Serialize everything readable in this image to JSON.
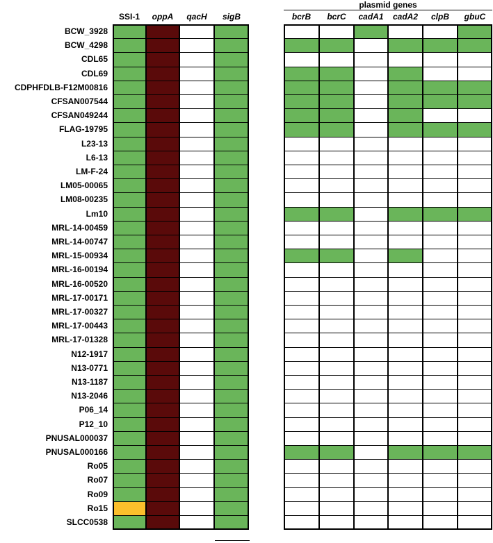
{
  "colors": {
    "present": "#6ab55a",
    "absent": "#ffffff",
    "oppA": "#5a0a0a",
    "variant": "#fbbf2c",
    "border": "#000000"
  },
  "chart_data": {
    "type": "heatmap",
    "title": "",
    "group_title": "plasmid genes",
    "columns": [
      {
        "label": "SSI-1",
        "italic": false,
        "group": "left"
      },
      {
        "label": "oppA",
        "italic": true,
        "group": "left"
      },
      {
        "label": "qacH",
        "italic": true,
        "group": "left"
      },
      {
        "label": "sigB",
        "italic": true,
        "group": "left"
      },
      {
        "label": "bcrB",
        "italic": true,
        "group": "plasmid"
      },
      {
        "label": "bcrC",
        "italic": true,
        "group": "plasmid"
      },
      {
        "label": "cadA1",
        "italic": true,
        "group": "plasmid"
      },
      {
        "label": "cadA2",
        "italic": true,
        "group": "plasmid"
      },
      {
        "label": "clpB",
        "italic": true,
        "group": "plasmid"
      },
      {
        "label": "gbuC",
        "italic": true,
        "group": "plasmid"
      }
    ],
    "value_legend": {
      "0": "absent",
      "1": "present",
      "2": "oppA",
      "3": "variant"
    },
    "rows": [
      {
        "label": "BCW_3928",
        "values": [
          1,
          2,
          0,
          1,
          0,
          0,
          1,
          0,
          0,
          1
        ]
      },
      {
        "label": "BCW_4298",
        "values": [
          1,
          2,
          0,
          1,
          1,
          1,
          0,
          1,
          1,
          1
        ]
      },
      {
        "label": "CDL65",
        "values": [
          1,
          2,
          0,
          1,
          0,
          0,
          0,
          0,
          0,
          0
        ]
      },
      {
        "label": "CDL69",
        "values": [
          1,
          2,
          0,
          1,
          1,
          1,
          0,
          1,
          0,
          0
        ]
      },
      {
        "label": "CDPHFDLB-F12M00816",
        "values": [
          1,
          2,
          0,
          1,
          1,
          1,
          0,
          1,
          1,
          1
        ]
      },
      {
        "label": "CFSAN007544",
        "values": [
          1,
          2,
          0,
          1,
          1,
          1,
          0,
          1,
          1,
          1
        ]
      },
      {
        "label": "CFSAN049244",
        "values": [
          1,
          2,
          0,
          1,
          1,
          1,
          0,
          1,
          0,
          0
        ]
      },
      {
        "label": "FLAG-19795",
        "values": [
          1,
          2,
          0,
          1,
          1,
          1,
          0,
          1,
          1,
          1
        ]
      },
      {
        "label": "L23-13",
        "values": [
          1,
          2,
          0,
          1,
          0,
          0,
          0,
          0,
          0,
          0
        ]
      },
      {
        "label": "L6-13",
        "values": [
          1,
          2,
          0,
          1,
          0,
          0,
          0,
          0,
          0,
          0
        ]
      },
      {
        "label": "LM-F-24",
        "values": [
          1,
          2,
          0,
          1,
          0,
          0,
          0,
          0,
          0,
          0
        ]
      },
      {
        "label": "LM05-00065",
        "values": [
          1,
          2,
          0,
          1,
          0,
          0,
          0,
          0,
          0,
          0
        ]
      },
      {
        "label": "LM08-00235",
        "values": [
          1,
          2,
          0,
          1,
          0,
          0,
          0,
          0,
          0,
          0
        ]
      },
      {
        "label": "Lm10",
        "values": [
          1,
          2,
          0,
          1,
          1,
          1,
          0,
          1,
          1,
          1
        ]
      },
      {
        "label": "MRL-14-00459",
        "values": [
          1,
          2,
          0,
          1,
          0,
          0,
          0,
          0,
          0,
          0
        ]
      },
      {
        "label": "MRL-14-00747",
        "values": [
          1,
          2,
          0,
          1,
          0,
          0,
          0,
          0,
          0,
          0
        ]
      },
      {
        "label": "MRL-15-00934",
        "values": [
          1,
          2,
          0,
          1,
          1,
          1,
          0,
          1,
          0,
          0
        ]
      },
      {
        "label": "MRL-16-00194",
        "values": [
          1,
          2,
          0,
          1,
          0,
          0,
          0,
          0,
          0,
          0
        ]
      },
      {
        "label": "MRL-16-00520",
        "values": [
          1,
          2,
          0,
          1,
          0,
          0,
          0,
          0,
          0,
          0
        ]
      },
      {
        "label": "MRL-17-00171",
        "values": [
          1,
          2,
          0,
          1,
          0,
          0,
          0,
          0,
          0,
          0
        ]
      },
      {
        "label": "MRL-17-00327",
        "values": [
          1,
          2,
          0,
          1,
          0,
          0,
          0,
          0,
          0,
          0
        ]
      },
      {
        "label": "MRL-17-00443",
        "values": [
          1,
          2,
          0,
          1,
          0,
          0,
          0,
          0,
          0,
          0
        ]
      },
      {
        "label": "MRL-17-01328",
        "values": [
          1,
          2,
          0,
          1,
          0,
          0,
          0,
          0,
          0,
          0
        ]
      },
      {
        "label": "N12-1917",
        "values": [
          1,
          2,
          0,
          1,
          0,
          0,
          0,
          0,
          0,
          0
        ]
      },
      {
        "label": "N13-0771",
        "values": [
          1,
          2,
          0,
          1,
          0,
          0,
          0,
          0,
          0,
          0
        ]
      },
      {
        "label": "N13-1187",
        "values": [
          1,
          2,
          0,
          1,
          0,
          0,
          0,
          0,
          0,
          0
        ]
      },
      {
        "label": "N13-2046",
        "values": [
          1,
          2,
          0,
          1,
          0,
          0,
          0,
          0,
          0,
          0
        ]
      },
      {
        "label": "P06_14",
        "values": [
          1,
          2,
          0,
          1,
          0,
          0,
          0,
          0,
          0,
          0
        ]
      },
      {
        "label": "P12_10",
        "values": [
          1,
          2,
          0,
          1,
          0,
          0,
          0,
          0,
          0,
          0
        ]
      },
      {
        "label": "PNUSAL000037",
        "values": [
          1,
          2,
          0,
          1,
          0,
          0,
          0,
          0,
          0,
          0
        ]
      },
      {
        "label": "PNUSAL000166",
        "values": [
          1,
          2,
          0,
          1,
          1,
          1,
          0,
          1,
          1,
          1
        ]
      },
      {
        "label": "Ro05",
        "values": [
          1,
          2,
          0,
          1,
          0,
          0,
          0,
          0,
          0,
          0
        ]
      },
      {
        "label": "Ro07",
        "values": [
          1,
          2,
          0,
          1,
          0,
          0,
          0,
          0,
          0,
          0
        ]
      },
      {
        "label": "Ro09",
        "values": [
          1,
          2,
          0,
          1,
          0,
          0,
          0,
          0,
          0,
          0
        ]
      },
      {
        "label": "Ro15",
        "values": [
          3,
          2,
          0,
          1,
          0,
          0,
          0,
          0,
          0,
          0
        ]
      },
      {
        "label": "SLCC0538",
        "values": [
          1,
          2,
          0,
          1,
          0,
          0,
          0,
          0,
          0,
          0
        ]
      }
    ],
    "grid": true,
    "legend": "none"
  }
}
